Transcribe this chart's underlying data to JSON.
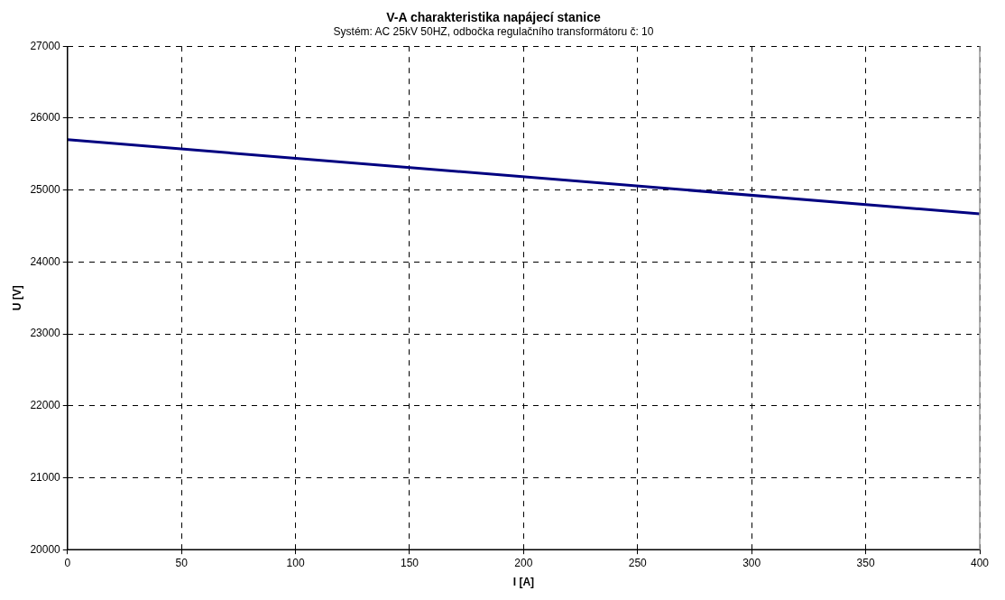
{
  "chart_data": {
    "type": "line",
    "title": "V-A charakteristika napájecí stanice",
    "subtitle": "Systém: AC 25kV 50HZ, odbočka regulačního transformátoru č: 10",
    "xlabel": "I [A]",
    "ylabel": "U [V]",
    "series": [
      {
        "color": "#000080",
        "x": [
          0,
          400
        ],
        "values": [
          25700,
          24670
        ]
      }
    ],
    "xlim": [
      0,
      400
    ],
    "xticks": [
      0,
      50,
      100,
      150,
      200,
      250,
      300,
      350,
      400
    ],
    "ylim": [
      20000,
      27000
    ],
    "yticks": [
      20000,
      21000,
      22000,
      23000,
      24000,
      25000,
      26000,
      27000
    ],
    "grid": true,
    "legend": false,
    "marker": "none",
    "line_style": "solid"
  }
}
